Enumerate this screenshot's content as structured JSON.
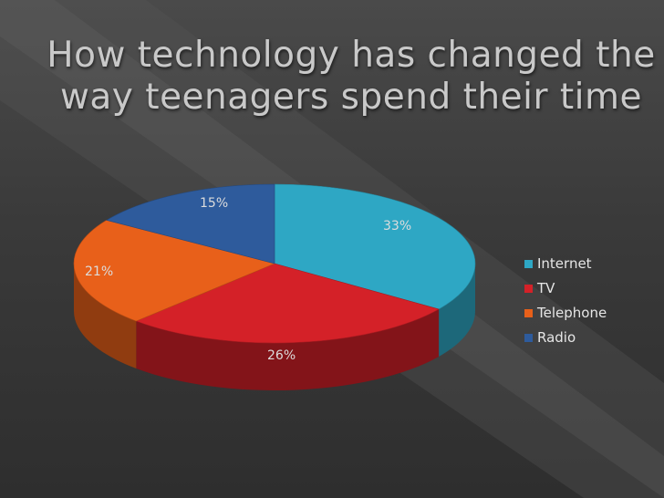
{
  "slide": {
    "title_line1": "How technology has changed the",
    "title_line2": "way teenagers spend their time"
  },
  "chart_data": {
    "type": "pie",
    "title": "",
    "categories": [
      "Internet",
      "TV",
      "Telephone",
      "Radio"
    ],
    "values": [
      33,
      26,
      21,
      15
    ],
    "labels": [
      "33%",
      "26%",
      "21%",
      "15%"
    ],
    "colors": [
      "#2ea7c4",
      "#d42128",
      "#e8601a",
      "#2e5b9c"
    ],
    "legend": "right",
    "style": "3d"
  }
}
